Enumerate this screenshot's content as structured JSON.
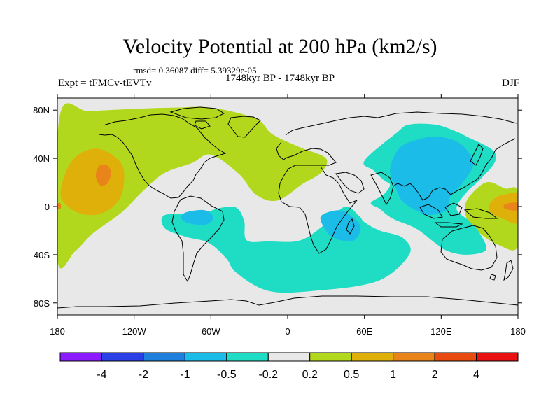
{
  "chart_data": {
    "type": "heatmap",
    "title": "Velocity Potential at 200 hPa (km2/s)",
    "subtitle_rmsd": "rmsd= 0.36087 diff= 5.39329e-05",
    "left_string": "Expt = tFMCv-tEVTv",
    "center_string": "1748kyr BP - 1748kyr BP",
    "right_string": "DJF",
    "xlim": [
      -180,
      180
    ],
    "ylim": [
      -90,
      90
    ],
    "x_tick_labels": [
      {
        "value": -180,
        "label": "180"
      },
      {
        "value": -120,
        "label": "120W"
      },
      {
        "value": -60,
        "label": "60W"
      },
      {
        "value": 0,
        "label": "0"
      },
      {
        "value": 60,
        "label": "60E"
      },
      {
        "value": 120,
        "label": "120E"
      },
      {
        "value": 180,
        "label": "180"
      }
    ],
    "y_tick_labels": [
      {
        "value": 80,
        "label": "80N"
      },
      {
        "value": 40,
        "label": "40N"
      },
      {
        "value": 0,
        "label": "0"
      },
      {
        "value": -40,
        "label": "40S"
      },
      {
        "value": -80,
        "label": "80S"
      }
    ],
    "colorbar": {
      "labels": [
        "-4",
        "-2",
        "-1",
        "-0.5",
        "-0.2",
        "0.2",
        "0.5",
        "1",
        "2",
        "4"
      ],
      "colors": [
        "#8c1cff",
        "#2b3fe6",
        "#1f7fdd",
        "#1bbde8",
        "#1fdcc4",
        "#e8e8e8",
        "#b2d81e",
        "#e0b00a",
        "#e8841a",
        "#e84a10",
        "#e81010"
      ]
    },
    "regions": [
      {
        "name": "north-american-band-02-05",
        "level": "0.2 to 0.5",
        "color": "#b2d81e",
        "points": [
          [
            -178,
            76
          ],
          [
            -155,
            79
          ],
          [
            -120,
            81
          ],
          [
            -90,
            82
          ],
          [
            -60,
            82
          ],
          [
            -25,
            73
          ],
          [
            -12,
            60
          ],
          [
            10,
            49
          ],
          [
            30,
            40
          ],
          [
            26,
            28
          ],
          [
            12,
            19
          ],
          [
            -8,
            5
          ],
          [
            -25,
            10
          ],
          [
            -38,
            27
          ],
          [
            -60,
            43
          ],
          [
            -75,
            36
          ],
          [
            -96,
            28
          ],
          [
            -112,
            14
          ],
          [
            -130,
            -5
          ],
          [
            -152,
            -22
          ],
          [
            -166,
            -37
          ],
          [
            -180,
            -44
          ]
        ]
      },
      {
        "name": "east-pacific-band-02-05",
        "level": "0.2 to 0.5",
        "color": "#b2d81e",
        "points": [
          [
            155,
            20
          ],
          [
            170,
            15
          ],
          [
            180,
            12
          ],
          [
            180,
            -33
          ],
          [
            165,
            -32
          ],
          [
            150,
            -22
          ],
          [
            140,
            -10
          ],
          [
            140,
            5
          ]
        ]
      },
      {
        "name": "pacific-max-05-1",
        "level": "0.5 to 1",
        "color": "#e0b00a",
        "points": [
          [
            -174,
            27
          ],
          [
            -165,
            42
          ],
          [
            -150,
            48
          ],
          [
            -136,
            42
          ],
          [
            -128,
            30
          ],
          [
            -131,
            7
          ],
          [
            -146,
            -6
          ],
          [
            -164,
            -5
          ],
          [
            -177,
            7
          ]
        ]
      },
      {
        "name": "pacific-max-1-2",
        "level": "1 to 2",
        "color": "#e8841a",
        "points": [
          [
            -147,
            34
          ],
          [
            -141,
            34
          ],
          [
            -138,
            28
          ],
          [
            -141,
            19
          ],
          [
            -147,
            18
          ],
          [
            -150,
            26
          ]
        ]
      },
      {
        "name": "dateline-west-1-2",
        "level": "1 to 2",
        "color": "#e8841a",
        "points": [
          [
            -180,
            2
          ],
          [
            -178,
            3
          ],
          [
            -177,
            0
          ],
          [
            -178,
            -2
          ],
          [
            -180,
            -2
          ]
        ]
      },
      {
        "name": "dateline-east-05-1",
        "level": "0.5 to 1",
        "color": "#e0b00a",
        "points": [
          [
            162,
            7
          ],
          [
            170,
            10
          ],
          [
            180,
            10
          ],
          [
            180,
            -13
          ],
          [
            170,
            -11
          ],
          [
            160,
            -6
          ],
          [
            157,
            0
          ]
        ]
      },
      {
        "name": "dateline-east-1-2",
        "level": "1 to 2",
        "color": "#e8841a",
        "points": [
          [
            170,
            2
          ],
          [
            180,
            3
          ],
          [
            180,
            -3
          ],
          [
            170,
            -2
          ]
        ]
      },
      {
        "name": "southern-neg-m05-m02",
        "level": "-0.5 to -0.2",
        "color": "#1fdcc4",
        "points": [
          [
            -70,
            -6
          ],
          [
            -52,
            -1
          ],
          [
            -40,
            -1
          ],
          [
            -34,
            -12
          ],
          [
            -32,
            -28
          ],
          [
            -15,
            -29
          ],
          [
            10,
            -28
          ],
          [
            30,
            -14
          ],
          [
            45,
            0
          ],
          [
            56,
            -8
          ],
          [
            60,
            -13
          ],
          [
            72,
            -20
          ],
          [
            90,
            -26
          ],
          [
            95,
            -40
          ],
          [
            70,
            -62
          ],
          [
            20,
            -70
          ],
          [
            -15,
            -70
          ],
          [
            -40,
            -55
          ],
          [
            -48,
            -43
          ],
          [
            -62,
            -30
          ],
          [
            -80,
            -25
          ],
          [
            -96,
            -18
          ],
          [
            -96,
            -7
          ]
        ]
      },
      {
        "name": "south-america-m1-m05",
        "level": "-1 to -0.5",
        "color": "#1bbde8",
        "points": [
          [
            -80,
            -5
          ],
          [
            -65,
            -3
          ],
          [
            -58,
            -9
          ],
          [
            -64,
            -15
          ],
          [
            -77,
            -14
          ],
          [
            -83,
            -10
          ]
        ]
      },
      {
        "name": "indian-ocean-m1-m05",
        "level": "-1 to -0.5",
        "color": "#1bbde8",
        "points": [
          [
            26,
            -8
          ],
          [
            40,
            -3
          ],
          [
            50,
            -8
          ],
          [
            57,
            -17
          ],
          [
            52,
            -28
          ],
          [
            38,
            -27
          ],
          [
            30,
            -20
          ]
        ]
      },
      {
        "name": "asia-neg-m05-m02",
        "level": "-0.5 to -0.2",
        "color": "#1fdcc4",
        "points": [
          [
            85,
            61
          ],
          [
            95,
            68
          ],
          [
            115,
            68
          ],
          [
            130,
            63
          ],
          [
            140,
            58
          ],
          [
            160,
            47
          ],
          [
            162,
            37
          ],
          [
            150,
            22
          ],
          [
            140,
            12
          ],
          [
            132,
            -2
          ],
          [
            142,
            -12
          ],
          [
            150,
            -22
          ],
          [
            155,
            -36
          ],
          [
            140,
            -40
          ],
          [
            125,
            -37
          ],
          [
            115,
            -30
          ],
          [
            100,
            -18
          ],
          [
            82,
            -10
          ],
          [
            72,
            -2
          ],
          [
            65,
            3
          ],
          [
            75,
            10
          ],
          [
            80,
            18
          ],
          [
            75,
            22
          ],
          [
            67,
            30
          ],
          [
            60,
            38
          ]
        ]
      },
      {
        "name": "asia-neg-m1-m05",
        "level": "-1 to -0.5",
        "color": "#1bbde8",
        "points": [
          [
            87,
            48
          ],
          [
            100,
            55
          ],
          [
            117,
            58
          ],
          [
            135,
            52
          ],
          [
            145,
            36
          ],
          [
            137,
            20
          ],
          [
            127,
            8
          ],
          [
            124,
            -3
          ],
          [
            110,
            -7
          ],
          [
            100,
            -3
          ],
          [
            90,
            4
          ],
          [
            85,
            14
          ],
          [
            80,
            30
          ]
        ]
      }
    ]
  }
}
